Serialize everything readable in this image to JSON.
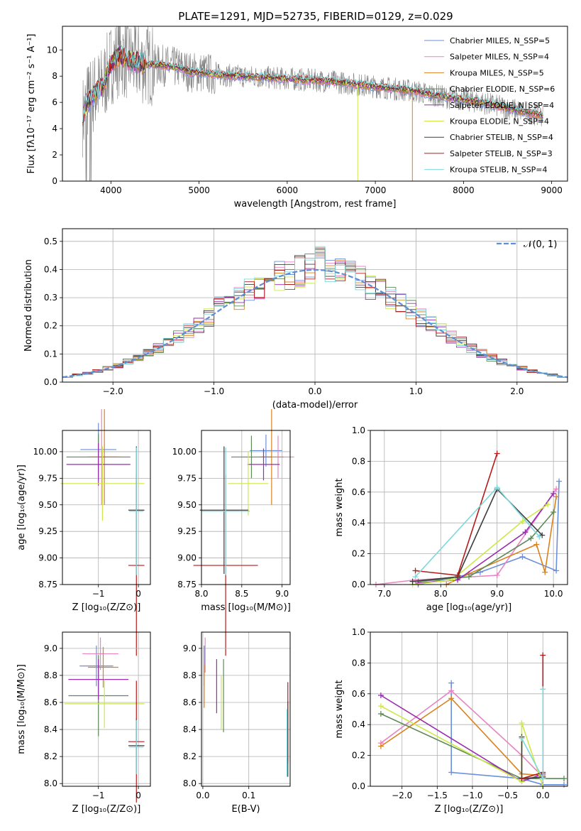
{
  "figure_title": "PLATE=1291, MJD=52735, FIBERID=0129, z=0.029",
  "chart_data": [
    {
      "id": "spectrum",
      "type": "line",
      "title": "PLATE=1291, MJD=52735, FIBERID=0129, z=0.029",
      "xlabel": "wavelength [Angstrom, rest frame]",
      "ylabel": "Flux [fλ10⁻¹⁷ erg cm⁻² s⁻¹ A⁻¹]",
      "xlim": [
        3450,
        9180
      ],
      "ylim": [
        0,
        11.8
      ],
      "xticks": [
        4000,
        5000,
        6000,
        7000,
        8000,
        9000
      ],
      "yticks": [
        0,
        2,
        4,
        6,
        8,
        10
      ],
      "grid": false,
      "legend": "top-right",
      "data_envelope": {
        "x": [
          3700,
          3800,
          3900,
          4000,
          4100,
          4200,
          4400,
          4600,
          4800,
          4900,
          5000,
          5200,
          5500,
          6000,
          6500,
          7000,
          7400,
          7800,
          8200,
          8600,
          8900
        ],
        "y": [
          5.6,
          6.6,
          7.2,
          8.9,
          9.6,
          9.2,
          8.9,
          8.8,
          8.6,
          8.3,
          8.3,
          8.1,
          8.0,
          7.8,
          7.6,
          7.2,
          6.9,
          6.4,
          6.0,
          5.4,
          5.0
        ]
      },
      "series": [
        {
          "name": "Chabrier MILES, N_SSP=5",
          "color": "#6a8fdc"
        },
        {
          "name": "Salpeter MILES, N_SSP=4",
          "color": "#e884c2"
        },
        {
          "name": "Kroupa MILES, N_SSP=5",
          "color": "#d9821f"
        },
        {
          "name": "Chabrier ELODIE, N_SSP=6",
          "color": "#5e8a57"
        },
        {
          "name": "Salpeter ELODIE, N_SSP=4",
          "color": "#9a2cae"
        },
        {
          "name": "Kroupa ELODIE, N_SSP=4",
          "color": "#cde849"
        },
        {
          "name": "Chabrier STELIB, N_SSP=4",
          "color": "#3d3d3d"
        },
        {
          "name": "Salpeter STELIB, N_SSP=3",
          "color": "#b51b1b"
        },
        {
          "name": "Kroupa STELIB, N_SSP=4",
          "color": "#7fd8dc"
        }
      ]
    },
    {
      "id": "residuals",
      "type": "line",
      "xlabel": "(data-model)/error",
      "ylabel": "Normed distribution",
      "xlim": [
        -2.5,
        2.5
      ],
      "ylim": [
        0,
        0.545
      ],
      "xticks": [
        -2,
        -1,
        0,
        1,
        2
      ],
      "yticks": [
        0.0,
        0.1,
        0.2,
        0.3,
        0.4,
        0.5
      ],
      "grid": true,
      "legend": "top-right",
      "reference": {
        "name": "𝒩(0, 1)",
        "color": "#5e8ed6",
        "mean": 0,
        "sigma": 1
      },
      "bin_width": 0.1
    },
    {
      "id": "age-vs-Z",
      "type": "scatter",
      "xlabel": "Z [log₁₀(Z/Z⊙)]",
      "ylabel": "age  [log₁₀(age/yr)]",
      "xlim": [
        -1.9,
        0.3
      ],
      "ylim": [
        8.75,
        10.2
      ],
      "xticks": [
        -1,
        0
      ],
      "yticks": [
        8.75,
        9.0,
        9.25,
        9.5,
        9.75,
        10.0
      ],
      "grid": true,
      "points": [
        {
          "x": -1.0,
          "y": 10.02,
          "xerr": 0.45,
          "yerr": 0.25,
          "color": "#6a8fdc"
        },
        {
          "x": -0.92,
          "y": 9.95,
          "xerr": 0.35,
          "yerr": 0.45,
          "color": "#e884c2"
        },
        {
          "x": -0.85,
          "y": 9.95,
          "xerr": 0.4,
          "yerr": 0.45,
          "color": "#d9821f"
        },
        {
          "x": -1.0,
          "y": 9.95,
          "xerr": 0.8,
          "yerr": 0.22,
          "color": "#5e8a57"
        },
        {
          "x": -1.0,
          "y": 9.88,
          "xerr": 0.8,
          "yerr": 0.2,
          "color": "#9a2cae"
        },
        {
          "x": -0.9,
          "y": 9.7,
          "xerr": 1.05,
          "yerr": 0.35,
          "color": "#cde849"
        },
        {
          "x": -0.05,
          "y": 9.45,
          "xerr": 0.2,
          "yerr": 0.6,
          "color": "#3d3d3d"
        },
        {
          "x": -0.05,
          "y": 8.93,
          "xerr": 0.2,
          "yerr": 0.85,
          "color": "#b51b1b"
        },
        {
          "x": -0.05,
          "y": 9.44,
          "xerr": 0.18,
          "yerr": 0.6,
          "color": "#7fd8dc"
        }
      ]
    },
    {
      "id": "age-vs-mass",
      "type": "scatter",
      "xlabel": "mass [log₁₀(M/M⊙)]",
      "ylabel": "",
      "xlim": [
        8.0,
        9.1
      ],
      "ylim": [
        8.75,
        10.2
      ],
      "xticks": [
        8.0,
        8.5,
        9.0
      ],
      "yticks": [
        8.75,
        9.0,
        9.25,
        9.5,
        9.75,
        10.0
      ],
      "grid": true,
      "points": [
        {
          "x": 8.8,
          "y": 10.01,
          "xerr": 0.2,
          "yerr": 0.15,
          "color": "#6a8fdc"
        },
        {
          "x": 8.95,
          "y": 9.95,
          "xerr": 0.2,
          "yerr": 0.2,
          "color": "#e884c2"
        },
        {
          "x": 8.87,
          "y": 9.95,
          "xerr": 0.15,
          "yerr": 0.45,
          "color": "#d9821f"
        },
        {
          "x": 8.62,
          "y": 9.95,
          "xerr": 0.25,
          "yerr": 0.2,
          "color": "#5e8a57"
        },
        {
          "x": 8.77,
          "y": 9.88,
          "xerr": 0.2,
          "yerr": 0.15,
          "color": "#9a2cae"
        },
        {
          "x": 8.58,
          "y": 9.7,
          "xerr": 0.25,
          "yerr": 0.3,
          "color": "#cde849"
        },
        {
          "x": 8.28,
          "y": 9.45,
          "xerr": 0.3,
          "yerr": 0.6,
          "color": "#3d3d3d"
        },
        {
          "x": 8.3,
          "y": 8.93,
          "xerr": 0.4,
          "yerr": 0.85,
          "color": "#b51b1b"
        },
        {
          "x": 8.3,
          "y": 9.44,
          "xerr": 0.3,
          "yerr": 0.6,
          "color": "#7fd8dc"
        }
      ]
    },
    {
      "id": "massweight-vs-age",
      "type": "line",
      "xlabel": "age  [log₁₀(age/yr)]",
      "ylabel": "mass weight",
      "xlim": [
        6.75,
        10.25
      ],
      "ylim": [
        0,
        1.0
      ],
      "xticks": [
        7,
        8,
        9,
        10
      ],
      "yticks": [
        0.0,
        0.2,
        0.4,
        0.6,
        0.8,
        1.0
      ],
      "grid": true,
      "series": [
        {
          "color": "#6a8fdc",
          "x": [
            7.6,
            8.7,
            9.45,
            10.05,
            10.1
          ],
          "y": [
            0.0,
            0.08,
            0.18,
            0.09,
            0.67
          ]
        },
        {
          "color": "#e884c2",
          "x": [
            6.85,
            7.55,
            9.0,
            10.05
          ],
          "y": [
            0.0,
            0.03,
            0.06,
            0.62
          ]
        },
        {
          "color": "#d9821f",
          "x": [
            8.1,
            8.5,
            9.7,
            9.85,
            10.05
          ],
          "y": [
            0.0,
            0.07,
            0.26,
            0.08,
            0.57
          ]
        },
        {
          "color": "#5e8a57",
          "x": [
            7.6,
            8.5,
            9.6,
            10.0
          ],
          "y": [
            0.02,
            0.05,
            0.3,
            0.47
          ]
        },
        {
          "color": "#9a2cae",
          "x": [
            7.6,
            8.3,
            9.5,
            10.0
          ],
          "y": [
            0.01,
            0.03,
            0.34,
            0.59
          ]
        },
        {
          "color": "#cde849",
          "x": [
            7.5,
            8.2,
            9.45,
            9.9
          ],
          "y": [
            0.0,
            0.03,
            0.41,
            0.52
          ]
        },
        {
          "color": "#3d3d3d",
          "x": [
            7.5,
            8.3,
            9.0,
            9.8
          ],
          "y": [
            0.02,
            0.05,
            0.62,
            0.32
          ]
        },
        {
          "color": "#b51b1b",
          "x": [
            7.55,
            8.3,
            9.0
          ],
          "y": [
            0.09,
            0.06,
            0.85
          ]
        },
        {
          "color": "#7fd8dc",
          "x": [
            7.55,
            9.0,
            9.75
          ],
          "y": [
            0.05,
            0.63,
            0.31
          ]
        }
      ]
    },
    {
      "id": "mass-vs-Z",
      "type": "scatter",
      "xlabel": "Z [log₁₀(Z/Z⊙)]",
      "ylabel": "mass [log₁₀(M/M⊙)]",
      "xlim": [
        -1.9,
        0.3
      ],
      "ylim": [
        7.98,
        9.12
      ],
      "xticks": [
        -1,
        0
      ],
      "yticks": [
        8.0,
        8.2,
        8.4,
        8.6,
        8.8,
        9.0
      ],
      "grid": true,
      "points": [
        {
          "x": -1.05,
          "y": 8.87,
          "xerr": 0.42,
          "yerr": 0.15,
          "color": "#6a8fdc"
        },
        {
          "x": -0.95,
          "y": 8.96,
          "xerr": 0.45,
          "yerr": 0.12,
          "color": "#e884c2"
        },
        {
          "x": -0.88,
          "y": 8.86,
          "xerr": 0.38,
          "yerr": 0.15,
          "color": "#d9821f"
        },
        {
          "x": -1.0,
          "y": 8.65,
          "xerr": 0.75,
          "yerr": 0.3,
          "color": "#5e8a57"
        },
        {
          "x": -1.0,
          "y": 8.77,
          "xerr": 0.75,
          "yerr": 0.15,
          "color": "#9a2cae"
        },
        {
          "x": -0.85,
          "y": 8.59,
          "xerr": 1.0,
          "yerr": 0.18,
          "color": "#cde849"
        },
        {
          "x": -0.05,
          "y": 8.28,
          "xerr": 0.2,
          "yerr": 0.2,
          "color": "#3d3d3d"
        },
        {
          "x": -0.05,
          "y": 8.31,
          "xerr": 0.2,
          "yerr": 0.45,
          "color": "#b51b1b"
        },
        {
          "x": -0.05,
          "y": 8.27,
          "xerr": 0.18,
          "yerr": 0.2,
          "color": "#7fd8dc"
        }
      ]
    },
    {
      "id": "mass-vs-ebv",
      "type": "scatter",
      "xlabel": "E(B-V)",
      "ylabel": "",
      "xlim": [
        -0.003,
        0.19
      ],
      "ylim": [
        7.98,
        9.12
      ],
      "xticks": [
        0.0,
        0.1
      ],
      "yticks": [
        8.0,
        8.2,
        8.4,
        8.6,
        8.8,
        9.0
      ],
      "grid": true,
      "points": [
        {
          "x": 0.003,
          "y": 8.87,
          "xerr": 0,
          "yerr": 0.15,
          "color": "#6a8fdc"
        },
        {
          "x": 0.005,
          "y": 8.95,
          "xerr": 0,
          "yerr": 0.13,
          "color": "#e884c2"
        },
        {
          "x": 0.003,
          "y": 8.72,
          "xerr": 0,
          "yerr": 0.16,
          "color": "#d9821f"
        },
        {
          "x": 0.045,
          "y": 8.65,
          "xerr": 0,
          "yerr": 0.27,
          "color": "#5e8a57"
        },
        {
          "x": 0.03,
          "y": 8.72,
          "xerr": 0,
          "yerr": 0.2,
          "color": "#9a2cae"
        },
        {
          "x": 0.04,
          "y": 8.6,
          "xerr": 0,
          "yerr": 0.2,
          "color": "#cde849"
        },
        {
          "x": 0.185,
          "y": 8.33,
          "xerr": 0,
          "yerr": 0.28,
          "color": "#3d3d3d"
        },
        {
          "x": 0.185,
          "y": 8.45,
          "xerr": 0,
          "yerr": 0.3,
          "color": "#b51b1b"
        },
        {
          "x": 0.183,
          "y": 8.3,
          "xerr": 0,
          "yerr": 0.25,
          "color": "#7fd8dc"
        }
      ]
    },
    {
      "id": "massweight-vs-Z",
      "type": "line",
      "xlabel": "Z [log₁₀(Z/Z⊙)]",
      "ylabel": "mass weight",
      "xlim": [
        -2.45,
        0.35
      ],
      "ylim": [
        0,
        1.0
      ],
      "xticks": [
        -2.0,
        -1.5,
        -1.0,
        -0.5,
        0.0
      ],
      "yticks": [
        0.0,
        0.2,
        0.4,
        0.6,
        0.8,
        1.0
      ],
      "grid": true,
      "series": [
        {
          "color": "#6a8fdc",
          "x": [
            -1.3,
            -1.3,
            -0.3,
            0.0,
            0.3
          ],
          "y": [
            0.67,
            0.09,
            0.05,
            0.01,
            0.01
          ]
        },
        {
          "color": "#e884c2",
          "x": [
            -2.3,
            -1.3,
            -0.3,
            0.0
          ],
          "y": [
            0.28,
            0.62,
            0.2,
            0.06
          ]
        },
        {
          "color": "#d9821f",
          "x": [
            -2.3,
            -1.3,
            -0.3,
            0.0
          ],
          "y": [
            0.26,
            0.57,
            0.08,
            0.07
          ]
        },
        {
          "color": "#5e8a57",
          "x": [
            -2.3,
            -0.3,
            0.0,
            0.3
          ],
          "y": [
            0.47,
            0.05,
            0.05,
            0.05
          ]
        },
        {
          "color": "#9a2cae",
          "x": [
            -2.3,
            -0.3,
            0.0
          ],
          "y": [
            0.59,
            0.03,
            0.08
          ]
        },
        {
          "color": "#cde849",
          "x": [
            -2.3,
            -0.3,
            -0.3,
            0.0
          ],
          "y": [
            0.52,
            0.03,
            0.41,
            0.0
          ]
        },
        {
          "color": "#3d3d3d",
          "x": [
            -0.3,
            -0.3,
            0.0
          ],
          "y": [
            0.32,
            0.05,
            0.06
          ]
        },
        {
          "color": "#b51b1b",
          "x": [
            -0.3,
            0.0,
            0.0
          ],
          "y": [
            0.05,
            0.09,
            0.85
          ]
        },
        {
          "color": "#7fd8dc",
          "x": [
            -0.3,
            0.0,
            0.0
          ],
          "y": [
            0.31,
            0.05,
            0.63
          ]
        }
      ]
    }
  ]
}
